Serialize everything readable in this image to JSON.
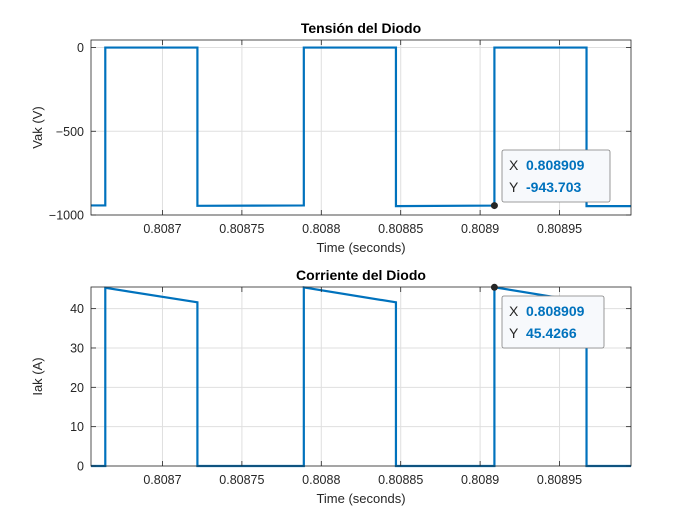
{
  "chart_data": [
    {
      "type": "line",
      "title": "Tensión del Diodo",
      "xlabel": "Time (seconds)",
      "ylabel": "Vak (V)",
      "xlim": [
        0.808655,
        0.808995
      ],
      "ylim": [
        -1000,
        45
      ],
      "x_ticks": [
        0.8087,
        0.80875,
        0.8088,
        0.80885,
        0.8089,
        0.80895
      ],
      "x_tick_labels": [
        "0.8087",
        "0.80875",
        "0.8088",
        "0.80885",
        "0.8089",
        "0.80895"
      ],
      "y_ticks": [
        -1000,
        -500,
        0
      ],
      "y_tick_labels": [
        "−1000",
        "−500",
        "0"
      ],
      "grid": true,
      "series": [
        {
          "color": "#0072bd",
          "x": [
            0.808655,
            0.808664,
            0.808664,
            0.808722,
            0.808722,
            0.808789,
            0.808789,
            0.808847,
            0.808847,
            0.808909,
            0.808909,
            0.808967,
            0.808967,
            0.808995
          ],
          "y": [
            -943,
            -943,
            0,
            0,
            -945,
            -943,
            0,
            0,
            -947,
            -943.703,
            0,
            0,
            -947,
            -947
          ]
        }
      ],
      "datatip": {
        "x_label": "X",
        "x_value": "0.808909",
        "y_label": "Y",
        "y_value": "-943.703",
        "x": 0.808909,
        "y": -943.703
      }
    },
    {
      "type": "line",
      "title": "Corriente del Diodo",
      "xlabel": "Time (seconds)",
      "ylabel": "Iak (A)",
      "xlim": [
        0.808655,
        0.808995
      ],
      "ylim": [
        0,
        45.5
      ],
      "x_ticks": [
        0.8087,
        0.80875,
        0.8088,
        0.80885,
        0.8089,
        0.80895
      ],
      "x_tick_labels": [
        "0.8087",
        "0.80875",
        "0.8088",
        "0.80885",
        "0.8089",
        "0.80895"
      ],
      "y_ticks": [
        0,
        10,
        20,
        30,
        40
      ],
      "y_tick_labels": [
        "0",
        "10",
        "20",
        "30",
        "40"
      ],
      "grid": true,
      "series": [
        {
          "color": "#0072bd",
          "x": [
            0.808655,
            0.808664,
            0.808664,
            0.808722,
            0.808722,
            0.808789,
            0.808789,
            0.808847,
            0.808847,
            0.808909,
            0.808909,
            0.808967,
            0.808967,
            0.808995
          ],
          "y": [
            0,
            0,
            45.3,
            41.6,
            0,
            0,
            45.4,
            41.6,
            0,
            0,
            45.4266,
            41.6,
            0,
            0
          ]
        }
      ],
      "datatip": {
        "x_label": "X",
        "x_value": "0.808909",
        "y_label": "Y",
        "y_value": "45.4266",
        "x": 0.808909,
        "y": 45.4266
      }
    }
  ]
}
